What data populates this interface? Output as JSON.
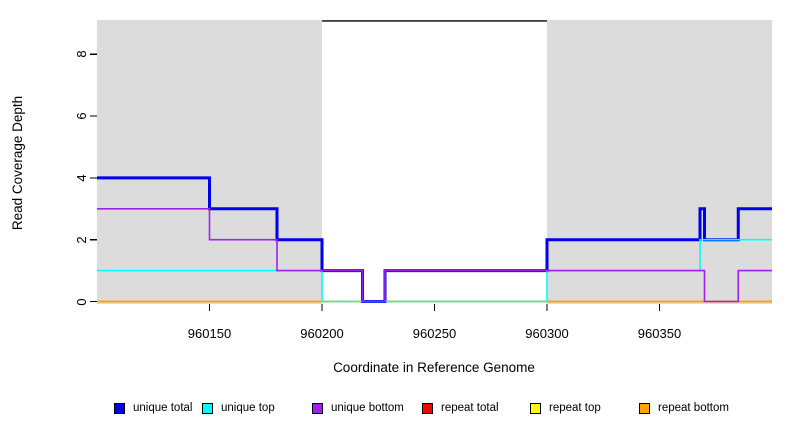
{
  "chart_data": {
    "type": "line",
    "subtype": "step-coverage",
    "title": "",
    "xlabel": "Coordinate in Reference Genome",
    "ylabel": "Read Coverage Depth",
    "xlim": [
      960100,
      960400
    ],
    "ylim": [
      0,
      9.1
    ],
    "x_ticks": [
      960150,
      960200,
      960250,
      960300,
      960350
    ],
    "x_tick_labels": [
      "960150",
      "960200",
      "960250",
      "960300",
      "960350"
    ],
    "y_ticks": [
      0,
      2,
      4,
      6,
      8
    ],
    "y_tick_labels": [
      "0",
      "2",
      "4",
      "6",
      "8"
    ],
    "grid": false,
    "shade_color": "#DCDCDC",
    "shaded_regions": [
      {
        "x0": 960100,
        "x1": 960200
      },
      {
        "x0": 960300,
        "x1": 960400
      }
    ],
    "highlight_region": {
      "x0": 960200,
      "x1": 960300
    },
    "annotation_segment": {
      "x0": 960200,
      "x1": 960300,
      "y": 9.08,
      "color": "#000000"
    },
    "series": [
      {
        "name": "repeat total",
        "color": "#FF0000",
        "width": 1.6,
        "steps": [
          [
            960100,
            0
          ]
        ]
      },
      {
        "name": "repeat top",
        "color": "#FFFF00",
        "width": 1.6,
        "steps": [
          [
            960100,
            0
          ]
        ]
      },
      {
        "name": "repeat bottom",
        "color": "#FFA500",
        "width": 1.6,
        "steps": [
          [
            960100,
            0
          ]
        ]
      },
      {
        "name": "unique total",
        "color": "#0000EE",
        "width": 3,
        "steps": [
          [
            960100,
            4
          ],
          [
            960150,
            3
          ],
          [
            960180,
            2
          ],
          [
            960200,
            1
          ],
          [
            960218,
            0
          ],
          [
            960228,
            1
          ],
          [
            960300,
            2
          ],
          [
            960368,
            3
          ],
          [
            960370,
            2
          ],
          [
            960385,
            3
          ]
        ]
      },
      {
        "name": "unique top",
        "color": "#00FFFF",
        "width": 1.6,
        "steps": [
          [
            960100,
            1
          ],
          [
            960200,
            0
          ],
          [
            960300,
            1
          ],
          [
            960368,
            2
          ]
        ]
      },
      {
        "name": "unique bottom",
        "color": "#A020F0",
        "width": 1.6,
        "steps": [
          [
            960100,
            3
          ],
          [
            960150,
            2
          ],
          [
            960180,
            1
          ],
          [
            960218,
            0
          ],
          [
            960228,
            1
          ],
          [
            960370,
            0
          ],
          [
            960385,
            1
          ]
        ]
      }
    ],
    "legend_position": "bottom",
    "legend": [
      {
        "label": "unique total",
        "color": "#0000EE"
      },
      {
        "label": "unique top",
        "color": "#00FFFF"
      },
      {
        "label": "unique bottom",
        "color": "#A020F0"
      },
      {
        "label": "repeat total",
        "color": "#FF0000"
      },
      {
        "label": "repeat top",
        "color": "#FFFF00"
      },
      {
        "label": "repeat bottom",
        "color": "#FFA500"
      }
    ]
  }
}
